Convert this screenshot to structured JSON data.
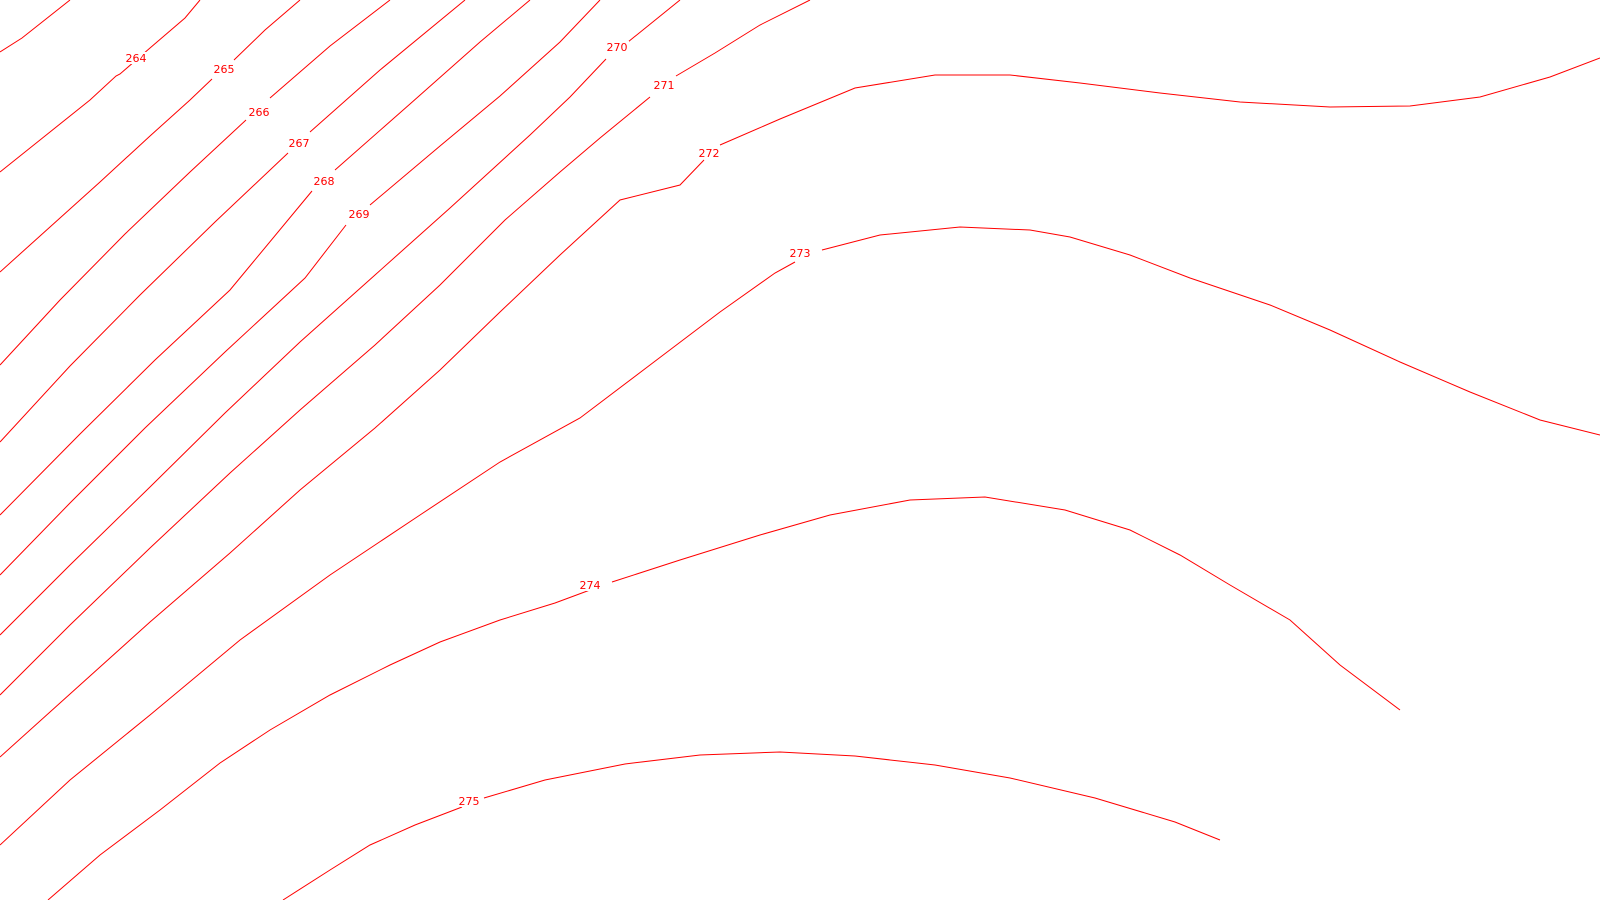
{
  "map": {
    "line_color": "#ff0000",
    "background_color": "#ffffff",
    "contours": [
      {
        "elevation_label": "264"
      },
      {
        "elevation_label": "265"
      },
      {
        "elevation_label": "266"
      },
      {
        "elevation_label": "267"
      },
      {
        "elevation_label": "268"
      },
      {
        "elevation_label": "269"
      },
      {
        "elevation_label": "270"
      },
      {
        "elevation_label": "271"
      },
      {
        "elevation_label": "272"
      },
      {
        "elevation_label": "273"
      },
      {
        "elevation_label": "274"
      },
      {
        "elevation_label": "275"
      }
    ]
  }
}
